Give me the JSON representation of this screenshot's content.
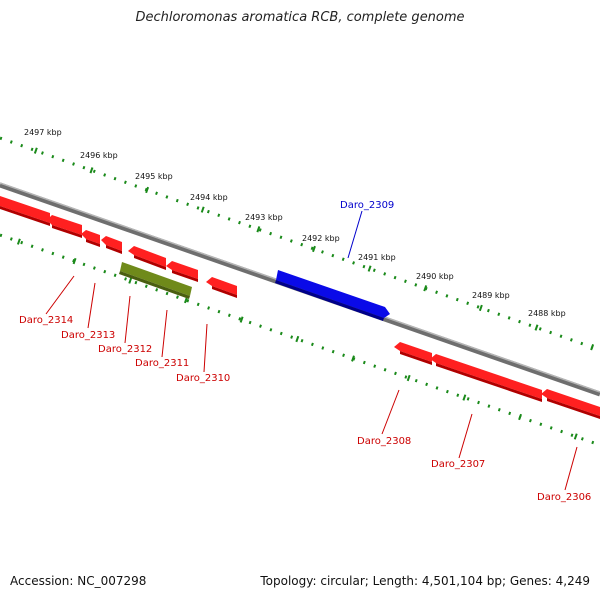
{
  "header": {
    "title": "Dechloromonas aromatica RCB, complete genome"
  },
  "footer": {
    "accession": "Accession: NC_007298",
    "summary": "Topology: circular; Length: 4,501,104 bp; Genes: 4,249"
  },
  "scale": {
    "labels": [
      "2497 kbp",
      "2496 kbp",
      "2495 kbp",
      "2494 kbp",
      "2493 kbp",
      "2492 kbp",
      "2491 kbp",
      "2490 kbp",
      "2489 kbp",
      "2488 kbp"
    ]
  },
  "genes": [
    {
      "label": "Daro_2314",
      "strand": "reverse",
      "color": "#e00000"
    },
    {
      "label": "Daro_2313",
      "strand": "reverse",
      "color": "#e00000"
    },
    {
      "label": "Daro_2312",
      "strand": "reverse",
      "color": "#e00000"
    },
    {
      "label": "Daro_2311",
      "strand": "reverse",
      "color": "#6f8a1a"
    },
    {
      "label": "Daro_2310",
      "strand": "reverse",
      "color": "#e00000"
    },
    {
      "label": "Daro_2309",
      "strand": "forward",
      "color": "#0000ee"
    },
    {
      "label": "Daro_2308",
      "strand": "reverse",
      "color": "#e00000"
    },
    {
      "label": "Daro_2307",
      "strand": "reverse",
      "color": "#e00000"
    },
    {
      "label": "Daro_2306",
      "strand": "reverse",
      "color": "#e00000"
    }
  ],
  "colors": {
    "backbone": "#8a8a8a",
    "scale_dots": "#1a8a1a",
    "reverse_label": "#cc0000",
    "forward_label": "#0000cc"
  }
}
